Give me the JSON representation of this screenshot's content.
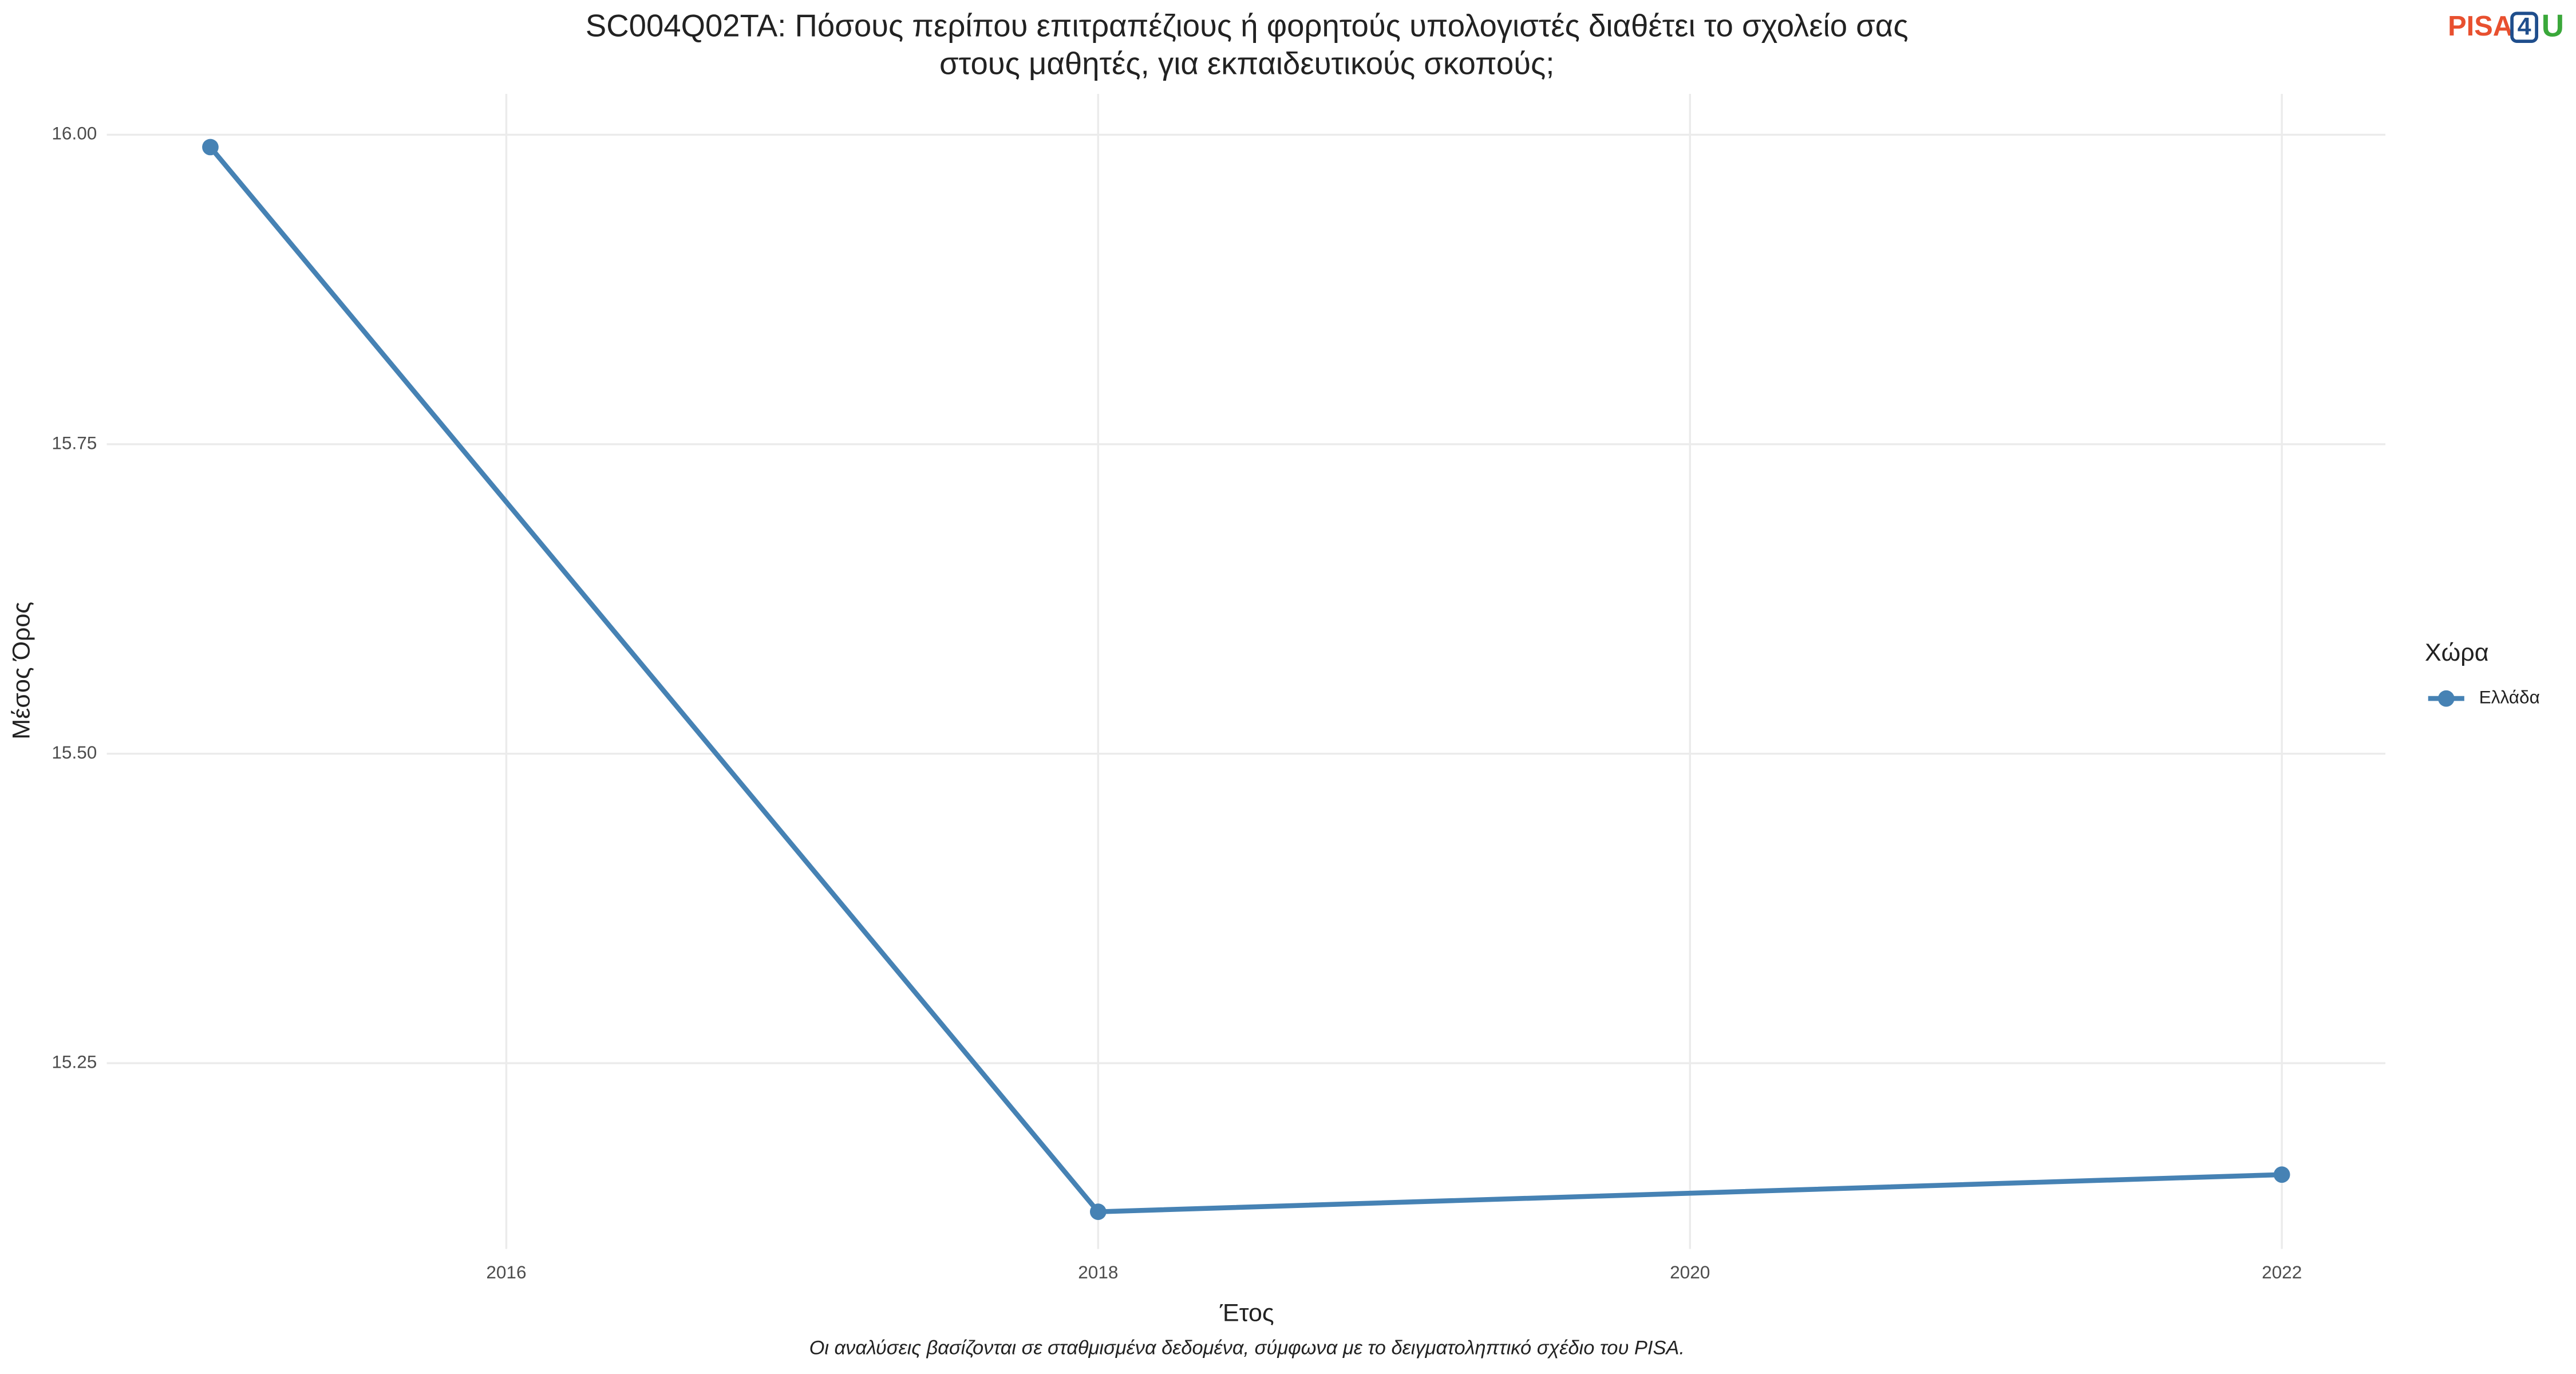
{
  "chart_data": {
    "type": "line",
    "title": [
      "SC004Q02TA: Πόσους περίπου επιτραπέζιους ή φορητούς υπολογιστές διαθέτει το σχολείο σας",
      "στους μαθητές, για εκπαιδευτικούς σκοπούς;"
    ],
    "x_label": "Έτος",
    "y_label": "Μέσος Όρος",
    "caption": "Οι αναλύσεις βασίζονται σε σταθμισμένα δεδομένα, σύμφωνα με το δειγματοληπτικό σχέδιο του PISA.",
    "logo": [
      "PISA",
      "4",
      "U"
    ],
    "legend_title": "Χώρα",
    "legend_position": "right",
    "x": [
      2015,
      2018,
      2022
    ],
    "series": [
      {
        "name": "Ελλάδα",
        "color": "#4682b4",
        "values": [
          15.99,
          15.13,
          15.16
        ]
      }
    ],
    "xlim": [
      2014.65,
      2022.35
    ],
    "xticks": [
      2016,
      2018,
      2020,
      2022
    ],
    "ylim": [
      15.1,
      16.033
    ],
    "yticks": [
      {
        "value": 15.25,
        "label": "15.25"
      },
      {
        "value": 15.5,
        "label": "15.50"
      },
      {
        "value": 15.75,
        "label": "15.75"
      },
      {
        "value": 16,
        "label": "16.00"
      }
    ],
    "grid": true
  }
}
